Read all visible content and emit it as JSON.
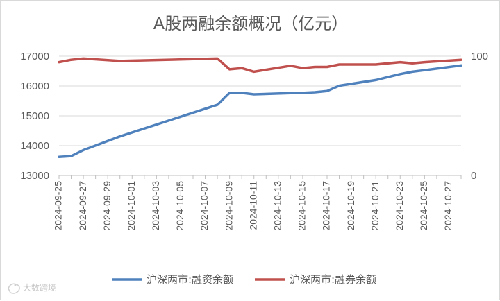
{
  "watermark": "大数跨境",
  "chart_data": {
    "type": "line",
    "title": "A股两融余额概况（亿元）",
    "x": [
      "2024-09-25",
      "2024-09-26",
      "2024-09-27",
      "2024-09-30",
      "2024-10-08",
      "2024-10-09",
      "2024-10-10",
      "2024-10-11",
      "2024-10-14",
      "2024-10-15",
      "2024-10-16",
      "2024-10-17",
      "2024-10-18",
      "2024-10-21",
      "2024-10-22",
      "2024-10-23",
      "2024-10-24",
      "2024-10-25",
      "2024-10-28"
    ],
    "x_tick_labels": [
      "2024-09-25",
      "2024-09-27",
      "2024-09-29",
      "2024-10-01",
      "2024-10-03",
      "2024-10-05",
      "2024-10-07",
      "2024-10-09",
      "2024-10-11",
      "2024-10-13",
      "2024-10-15",
      "2024-10-17",
      "2024-10-19",
      "2024-10-21",
      "2024-10-23",
      "2024-10-25",
      "2024-10-27"
    ],
    "x_range": [
      "2024-09-25",
      "2024-10-28"
    ],
    "y_left": {
      "ticks": [
        13000,
        14000,
        15000,
        16000,
        17000
      ],
      "range": [
        13000,
        17000
      ]
    },
    "y_right": {
      "ticks": [
        0,
        100
      ],
      "range": [
        0,
        100
      ]
    },
    "grid": true,
    "legend_position": "bottom",
    "series": [
      {
        "name": "沪深两市:融资余额",
        "axis": "left",
        "color": "#4f81bd",
        "values": [
          13620,
          13650,
          13850,
          14310,
          15370,
          15770,
          15770,
          15720,
          15760,
          15770,
          15790,
          15830,
          16010,
          16200,
          16300,
          16400,
          16480,
          16530,
          16690
        ]
      },
      {
        "name": "沪深两市:融券余额",
        "axis": "right",
        "color": "#c0504d",
        "values": [
          95,
          97,
          98,
          96,
          98,
          89,
          90,
          87,
          92,
          90,
          91,
          91,
          93,
          93,
          94,
          95,
          94,
          95,
          97
        ]
      }
    ]
  }
}
